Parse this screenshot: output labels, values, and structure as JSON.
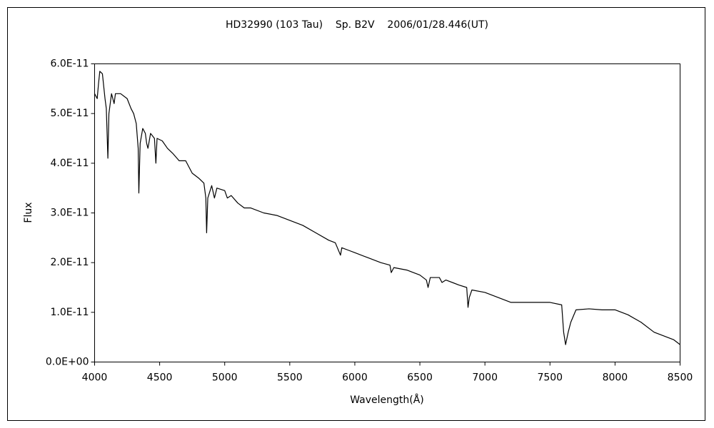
{
  "chart_data": {
    "type": "line",
    "title": "HD32990 (103 Tau)    Sp. B2V    2006/01/28.446(UT)",
    "x_label": "Wavelength(Å)",
    "y_label": "Flux",
    "xlim": [
      4000,
      8500
    ],
    "xticks": [
      4000,
      4500,
      5000,
      5500,
      6000,
      6500,
      7000,
      7500,
      8000,
      8500
    ],
    "ylim": [
      0,
      6e-11
    ],
    "yticks": [
      {
        "value": 0,
        "label": "0.0E+00"
      },
      {
        "value": 1e-11,
        "label": "1.0E-11"
      },
      {
        "value": 2e-11,
        "label": "2.0E-11"
      },
      {
        "value": 3e-11,
        "label": "3.0E-11"
      },
      {
        "value": 4e-11,
        "label": "4.0E-11"
      },
      {
        "value": 5e-11,
        "label": "5.0E-11"
      },
      {
        "value": 6e-11,
        "label": "6.0E-11"
      }
    ],
    "grid": false,
    "color": "#000000",
    "x": [
      4000,
      4020,
      4030,
      4040,
      4060,
      4080,
      4090,
      4102,
      4110,
      4130,
      4150,
      4160,
      4200,
      4250,
      4280,
      4300,
      4320,
      4335,
      4340,
      4350,
      4370,
      4390,
      4400,
      4410,
      4430,
      4460,
      4471,
      4480,
      4520,
      4560,
      4600,
      4650,
      4700,
      4750,
      4800,
      4840,
      4855,
      4861,
      4870,
      4900,
      4921,
      4940,
      5000,
      5020,
      5050,
      5100,
      5150,
      5200,
      5300,
      5400,
      5500,
      5600,
      5700,
      5800,
      5850,
      5890,
      5900,
      5950,
      6000,
      6100,
      6200,
      6270,
      6280,
      6300,
      6400,
      6500,
      6550,
      6563,
      6580,
      6650,
      6670,
      6700,
      6800,
      6860,
      6870,
      6880,
      6900,
      7000,
      7100,
      7150,
      7200,
      7300,
      7400,
      7500,
      7590,
      7605,
      7620,
      7640,
      7660,
      7700,
      7800,
      7900,
      8000,
      8100,
      8200,
      8300,
      8400,
      8450,
      8500
    ],
    "values": [
      5.4e-11,
      5.3e-11,
      5.6e-11,
      5.85e-11,
      5.8e-11,
      5.3e-11,
      5.1e-11,
      4.1e-11,
      5e-11,
      5.4e-11,
      5.2e-11,
      5.4e-11,
      5.4e-11,
      5.3e-11,
      5.1e-11,
      5e-11,
      4.8e-11,
      4.3e-11,
      3.4e-11,
      4.4e-11,
      4.7e-11,
      4.6e-11,
      4.4e-11,
      4.3e-11,
      4.6e-11,
      4.5e-11,
      4e-11,
      4.5e-11,
      4.45e-11,
      4.3e-11,
      4.2e-11,
      4.05e-11,
      4.05e-11,
      3.8e-11,
      3.7e-11,
      3.6e-11,
      3.3e-11,
      2.6e-11,
      3.3e-11,
      3.55e-11,
      3.3e-11,
      3.5e-11,
      3.45e-11,
      3.3e-11,
      3.35e-11,
      3.2e-11,
      3.1e-11,
      3.1e-11,
      3e-11,
      2.95e-11,
      2.85e-11,
      2.75e-11,
      2.6e-11,
      2.45e-11,
      2.4e-11,
      2.15e-11,
      2.3e-11,
      2.25e-11,
      2.2e-11,
      2.1e-11,
      2e-11,
      1.95e-11,
      1.8e-11,
      1.9e-11,
      1.85e-11,
      1.75e-11,
      1.65e-11,
      1.5e-11,
      1.7e-11,
      1.7e-11,
      1.6e-11,
      1.65e-11,
      1.55e-11,
      1.5e-11,
      1.1e-11,
      1.3e-11,
      1.45e-11,
      1.4e-11,
      1.3e-11,
      1.25e-11,
      1.2e-11,
      1.2e-11,
      1.2e-11,
      1.2e-11,
      1.15e-11,
      6e-12,
      3.5e-12,
      6e-12,
      8e-12,
      1.05e-11,
      1.07e-11,
      1.05e-11,
      1.05e-11,
      9.5e-12,
      8e-12,
      6e-12,
      5e-12,
      4.5e-12,
      3.5e-12
    ]
  }
}
